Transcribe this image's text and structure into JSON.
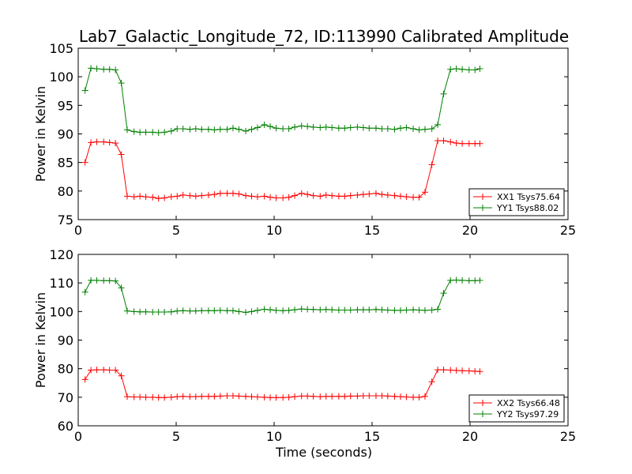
{
  "title": "Lab7_Galactic_Longitude_72, ID:113990 Calibrated Amplitude",
  "xlabel": "Time (seconds)",
  "colors": {
    "red": "#ff0000",
    "green": "#008000"
  },
  "chart_data": [
    {
      "type": "line",
      "ylabel": "Power in Kelvin",
      "xlim": [
        0,
        25
      ],
      "ylim": [
        75,
        105
      ],
      "xticks": [
        0,
        5,
        10,
        15,
        20,
        25
      ],
      "yticks": [
        75,
        80,
        85,
        90,
        95,
        100,
        105
      ],
      "legend": "lower-right",
      "x": [
        0.35,
        0.65,
        0.95,
        1.3,
        1.6,
        1.9,
        2.2,
        2.5,
        2.85,
        3.15,
        3.45,
        3.8,
        4.1,
        4.4,
        4.75,
        5.05,
        5.35,
        5.7,
        6.0,
        6.3,
        6.65,
        6.95,
        7.25,
        7.6,
        7.9,
        8.2,
        8.55,
        8.85,
        9.15,
        9.5,
        9.8,
        10.1,
        10.45,
        10.75,
        11.05,
        11.4,
        11.7,
        12.0,
        12.35,
        12.65,
        12.95,
        13.3,
        13.6,
        13.9,
        14.25,
        14.55,
        14.85,
        15.2,
        15.5,
        15.8,
        16.15,
        16.45,
        16.75,
        17.1,
        17.4,
        17.7,
        18.05,
        18.35,
        18.65,
        19.0,
        19.3,
        19.6,
        19.95,
        20.25,
        20.5
      ],
      "series": [
        {
          "name": "XX1 Tsys75.64",
          "color": "red",
          "values": [
            85.0,
            88.5,
            88.6,
            88.6,
            88.5,
            88.4,
            86.4,
            79.1,
            79.0,
            79.1,
            79.0,
            78.9,
            78.7,
            78.8,
            79.0,
            79.1,
            79.3,
            79.2,
            79.1,
            79.2,
            79.3,
            79.4,
            79.6,
            79.6,
            79.6,
            79.5,
            79.2,
            79.1,
            79.0,
            79.1,
            78.9,
            78.8,
            78.8,
            78.9,
            79.2,
            79.6,
            79.4,
            79.2,
            79.1,
            79.3,
            79.2,
            79.1,
            79.1,
            79.2,
            79.3,
            79.4,
            79.5,
            79.6,
            79.4,
            79.3,
            79.2,
            79.1,
            79.0,
            78.9,
            78.9,
            79.8,
            84.6,
            88.8,
            88.8,
            88.6,
            88.4,
            88.3,
            88.3,
            88.3,
            88.3
          ]
        },
        {
          "name": "YY1 Tsys88.02",
          "color": "green",
          "values": [
            97.6,
            101.5,
            101.4,
            101.3,
            101.3,
            101.2,
            98.9,
            90.7,
            90.4,
            90.3,
            90.3,
            90.3,
            90.2,
            90.3,
            90.5,
            90.9,
            90.9,
            90.8,
            90.9,
            90.8,
            90.8,
            90.7,
            90.8,
            90.8,
            91.0,
            90.8,
            90.5,
            90.8,
            91.1,
            91.6,
            91.3,
            91.0,
            90.9,
            90.9,
            91.2,
            91.4,
            91.3,
            91.2,
            91.1,
            91.2,
            91.1,
            91.0,
            91.0,
            91.1,
            91.2,
            91.1,
            91.0,
            91.0,
            90.9,
            90.9,
            90.8,
            91.0,
            91.1,
            90.9,
            90.7,
            90.8,
            90.9,
            91.6,
            97.0,
            101.3,
            101.4,
            101.3,
            101.2,
            101.2,
            101.4
          ]
        }
      ]
    },
    {
      "type": "line",
      "ylabel": "Power in Kelvin",
      "xlabel": "Time (seconds)",
      "xlim": [
        0,
        25
      ],
      "ylim": [
        60,
        120
      ],
      "xticks": [
        0,
        5,
        10,
        15,
        20,
        25
      ],
      "yticks": [
        60,
        70,
        80,
        90,
        100,
        110,
        120
      ],
      "legend": "lower-right",
      "x": [
        0.35,
        0.65,
        0.95,
        1.3,
        1.6,
        1.9,
        2.2,
        2.5,
        2.85,
        3.15,
        3.45,
        3.8,
        4.1,
        4.4,
        4.75,
        5.05,
        5.35,
        5.7,
        6.0,
        6.3,
        6.65,
        6.95,
        7.25,
        7.6,
        7.9,
        8.2,
        8.55,
        8.85,
        9.15,
        9.5,
        9.8,
        10.1,
        10.45,
        10.75,
        11.05,
        11.4,
        11.7,
        12.0,
        12.35,
        12.65,
        12.95,
        13.3,
        13.6,
        13.9,
        14.25,
        14.55,
        14.85,
        15.2,
        15.5,
        15.8,
        16.15,
        16.45,
        16.75,
        17.1,
        17.4,
        17.7,
        18.05,
        18.35,
        18.65,
        19.0,
        19.3,
        19.6,
        19.95,
        20.25,
        20.5
      ],
      "series": [
        {
          "name": "XX2 Tsys66.48",
          "color": "red",
          "values": [
            76.2,
            79.5,
            79.6,
            79.6,
            79.5,
            79.5,
            77.5,
            70.2,
            70.1,
            70.1,
            70.0,
            70.0,
            69.9,
            69.9,
            70.0,
            70.2,
            70.3,
            70.2,
            70.2,
            70.3,
            70.3,
            70.3,
            70.4,
            70.5,
            70.5,
            70.4,
            70.3,
            70.2,
            70.1,
            70.0,
            69.9,
            69.9,
            69.9,
            70.0,
            70.2,
            70.4,
            70.4,
            70.3,
            70.2,
            70.3,
            70.3,
            70.3,
            70.3,
            70.4,
            70.4,
            70.5,
            70.5,
            70.5,
            70.5,
            70.4,
            70.3,
            70.2,
            70.1,
            70.0,
            70.0,
            70.3,
            75.4,
            79.6,
            79.6,
            79.5,
            79.4,
            79.3,
            79.2,
            79.1,
            79.0
          ]
        },
        {
          "name": "YY2 Tsys97.29",
          "color": "green",
          "values": [
            106.8,
            110.9,
            110.9,
            110.8,
            110.8,
            110.7,
            108.3,
            100.2,
            100.0,
            99.9,
            99.9,
            99.8,
            99.8,
            99.8,
            99.9,
            100.2,
            100.3,
            100.2,
            100.2,
            100.3,
            100.3,
            100.3,
            100.4,
            100.3,
            100.3,
            100.0,
            99.7,
            100.0,
            100.4,
            100.8,
            100.6,
            100.4,
            100.3,
            100.4,
            100.6,
            100.9,
            100.8,
            100.7,
            100.6,
            100.7,
            100.6,
            100.5,
            100.5,
            100.5,
            100.6,
            100.6,
            100.6,
            100.7,
            100.6,
            100.5,
            100.4,
            100.4,
            100.5,
            100.6,
            100.5,
            100.4,
            100.5,
            100.8,
            106.4,
            110.9,
            111.0,
            110.9,
            110.8,
            110.8,
            110.9
          ]
        }
      ]
    }
  ]
}
